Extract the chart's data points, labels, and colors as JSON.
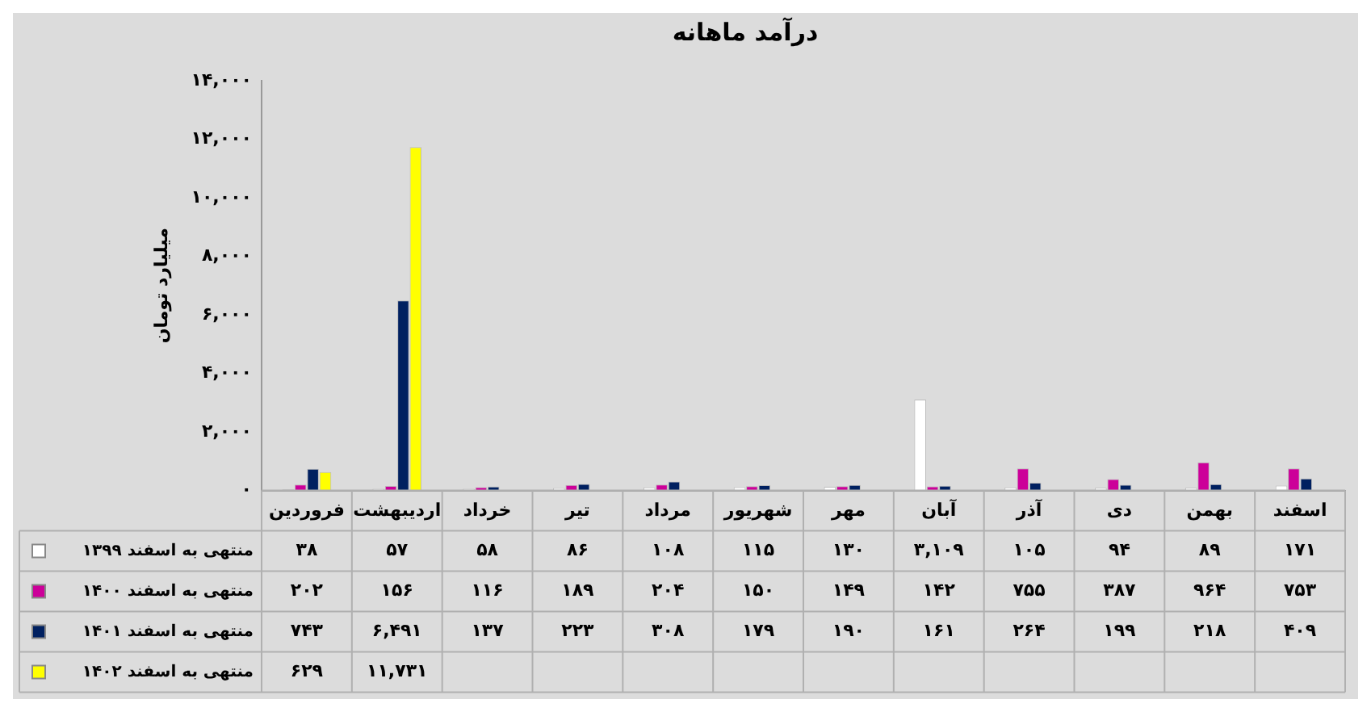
{
  "chart_data": {
    "type": "bar",
    "title": "درآمد ماهانه",
    "ylabel": "میلیارد تومان",
    "categories": [
      "فروردین",
      "اردیبهشت",
      "خرداد",
      "تیر",
      "مرداد",
      "شهریور",
      "مهر",
      "آبان",
      "آذر",
      "دی",
      "بهمن",
      "اسفند"
    ],
    "series": [
      {
        "name": "منتهی به اسفند ۱۳۹۹",
        "color": "#ffffff",
        "values": [
          38,
          57,
          58,
          86,
          108,
          115,
          130,
          3109,
          105,
          94,
          89,
          171
        ],
        "value_labels": [
          "۳۸",
          "۵۷",
          "۵۸",
          "۸۶",
          "۱۰۸",
          "۱۱۵",
          "۱۳۰",
          "۳,۱۰۹",
          "۱۰۵",
          "۹۴",
          "۸۹",
          "۱۷۱"
        ]
      },
      {
        "name": "منتهی به اسفند ۱۴۰۰",
        "color": "#cc0099",
        "values": [
          202,
          156,
          116,
          189,
          204,
          150,
          149,
          142,
          755,
          387,
          964,
          753
        ],
        "value_labels": [
          "۲۰۲",
          "۱۵۶",
          "۱۱۶",
          "۱۸۹",
          "۲۰۴",
          "۱۵۰",
          "۱۴۹",
          "۱۴۲",
          "۷۵۵",
          "۳۸۷",
          "۹۶۴",
          "۷۵۳"
        ]
      },
      {
        "name": "منتهی به اسفند ۱۴۰۱",
        "color": "#002060",
        "values": [
          743,
          6491,
          137,
          223,
          308,
          179,
          190,
          161,
          264,
          199,
          218,
          409
        ],
        "value_labels": [
          "۷۴۳",
          "۶,۴۹۱",
          "۱۳۷",
          "۲۲۳",
          "۳۰۸",
          "۱۷۹",
          "۱۹۰",
          "۱۶۱",
          "۲۶۴",
          "۱۹۹",
          "۲۱۸",
          "۴۰۹"
        ]
      },
      {
        "name": "منتهی به اسفند ۱۴۰۲",
        "color": "#ffff00",
        "values": [
          629,
          11731,
          null,
          null,
          null,
          null,
          null,
          null,
          null,
          null,
          null,
          null
        ],
        "value_labels": [
          "۶۲۹",
          "۱۱,۷۳۱",
          null,
          null,
          null,
          null,
          null,
          null,
          null,
          null,
          null,
          null
        ]
      }
    ],
    "ylim": [
      0,
      14000
    ],
    "yticks": [
      {
        "value": 0,
        "label": "۰"
      },
      {
        "value": 2000,
        "label": "۲,۰۰۰"
      },
      {
        "value": 4000,
        "label": "۴,۰۰۰"
      },
      {
        "value": 6000,
        "label": "۶,۰۰۰"
      },
      {
        "value": 8000,
        "label": "۸,۰۰۰"
      },
      {
        "value": 10000,
        "label": "۱۰,۰۰۰"
      },
      {
        "value": 12000,
        "label": "۱۲,۰۰۰"
      },
      {
        "value": 14000,
        "label": "۱۴,۰۰۰"
      }
    ],
    "legend": "bottom left"
  }
}
